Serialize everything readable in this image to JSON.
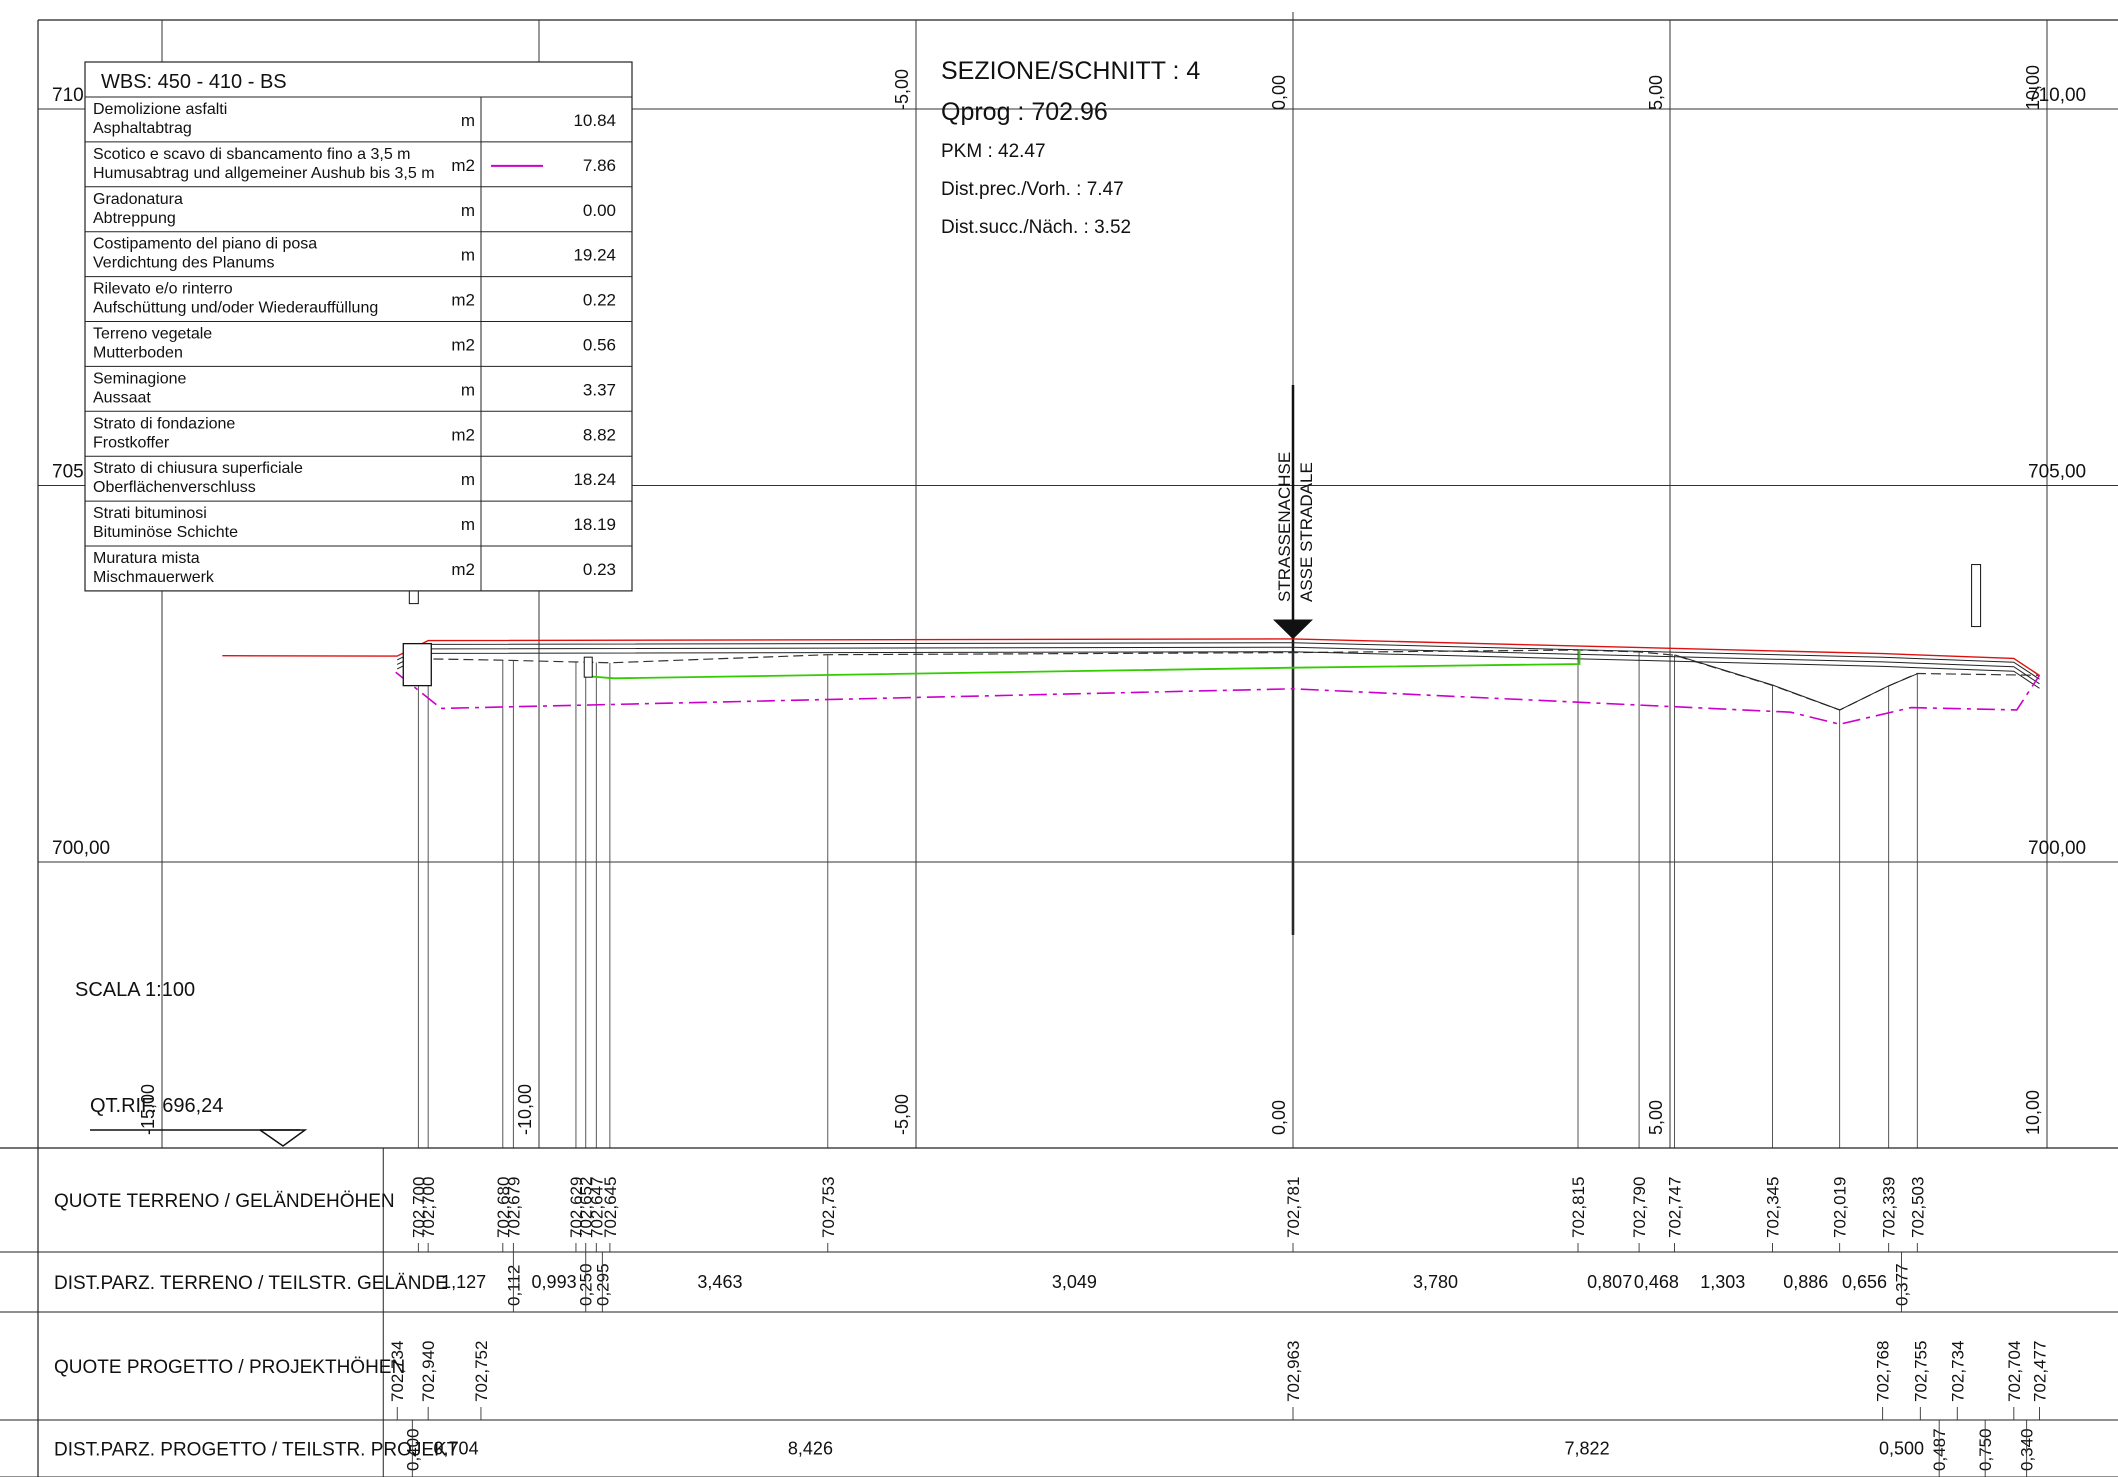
{
  "wbs_table": {
    "header": "WBS: 450 - 410 - BS",
    "rows": [
      {
        "it": "Demolizione asfalti",
        "de": "Asphaltabtrag",
        "unit": "m",
        "value": "10.84",
        "legend": ""
      },
      {
        "it": "Scotico e scavo di sbancamento fino a 3,5 m",
        "de": "Humusabtrag und allgemeiner Aushub bis 3,5 m",
        "unit": "m2",
        "value": "7.86",
        "legend": "#cc00cc"
      },
      {
        "it": "Gradonatura",
        "de": "Abtreppung",
        "unit": "m",
        "value": "0.00",
        "legend": ""
      },
      {
        "it": "Costipamento del piano di posa",
        "de": "Verdichtung des Planums",
        "unit": "m",
        "value": "19.24",
        "legend": ""
      },
      {
        "it": "Rilevato e/o rinterro",
        "de": "Aufschüttung und/oder Wiederauffüllung",
        "unit": "m2",
        "value": "0.22",
        "legend": ""
      },
      {
        "it": "Terreno vegetale",
        "de": "Mutterboden",
        "unit": "m2",
        "value": "0.56",
        "legend": ""
      },
      {
        "it": "Seminagione",
        "de": "Aussaat",
        "unit": "m",
        "value": "3.37",
        "legend": ""
      },
      {
        "it": "Strato di fondazione",
        "de": "Frostkoffer",
        "unit": "m2",
        "value": "8.82",
        "legend": ""
      },
      {
        "it": "Strato di chiusura superficiale",
        "de": "Oberflächenverschluss",
        "unit": "m",
        "value": "18.24",
        "legend": ""
      },
      {
        "it": "Strati bituminosi",
        "de": "Bituminöse Schichte",
        "unit": "m",
        "value": "18.19",
        "legend": ""
      },
      {
        "it": "Muratura mista",
        "de": "Mischmauerwerk",
        "unit": "m2",
        "value": "0.23",
        "legend": ""
      }
    ]
  },
  "section_info": {
    "title": "SEZIONE/SCHNITT : 4",
    "qprog": "Qprog : 702.96",
    "pkm": "PKM : 42.47",
    "dist_prev": "Dist.prec./Vorh. : 7.47",
    "dist_next": "Dist.succ./Näch. : 3.52"
  },
  "axis_labels": {
    "strassenachse": "STRASSENACHSE",
    "asse_stradale": "ASSE STRADALE"
  },
  "elevation_labels": [
    {
      "label": "710,00",
      "elev": 710,
      "side": "left",
      "partial": "710"
    },
    {
      "label": "710,00",
      "elev": 710,
      "side": "right"
    },
    {
      "label": "705,00",
      "elev": 705,
      "side": "left",
      "partial": "705"
    },
    {
      "label": "705,00",
      "elev": 705,
      "side": "right"
    },
    {
      "label": "700,00",
      "elev": 700,
      "side": "left"
    },
    {
      "label": "700,00",
      "elev": 700,
      "side": "right"
    }
  ],
  "offset_labels_top": [
    "-5,00",
    "0,00",
    "5,00",
    "10,00"
  ],
  "offset_labels_bottom": [
    "-10,00",
    "-5,00",
    "0,00",
    "5,00",
    "10,00",
    "-15,00"
  ],
  "scale": "SCALA 1:100",
  "reference": "QT.RIF. 696,24",
  "bands": [
    {
      "label": "QUOTE TERRENO / GELÄNDEHÖHEN",
      "values": [
        {
          "x": -11.6,
          "t": "702,700"
        },
        {
          "x": -11.47,
          "t": "702,700"
        },
        {
          "x": -10.48,
          "t": "702,680"
        },
        {
          "x": -10.34,
          "t": "702,679"
        },
        {
          "x": -9.51,
          "t": "702,629"
        },
        {
          "x": -9.38,
          "t": "702,652"
        },
        {
          "x": -9.24,
          "t": "702,647"
        },
        {
          "x": -9.06,
          "t": "702,645"
        },
        {
          "x": -6.17,
          "t": "702,753"
        },
        {
          "x": 0.0,
          "t": "702,781"
        },
        {
          "x": 3.78,
          "t": "702,815"
        },
        {
          "x": 4.59,
          "t": "702,790"
        },
        {
          "x": 5.06,
          "t": "702,747"
        },
        {
          "x": 6.36,
          "t": "702,345"
        },
        {
          "x": 7.25,
          "t": "702,019"
        },
        {
          "x": 7.9,
          "t": "702,339"
        },
        {
          "x": 8.28,
          "t": "702,503"
        }
      ]
    },
    {
      "label": "DIST.PARZ. TERRENO / TEILSTR. GELÄNDE",
      "values": [
        {
          "x": -11.0,
          "t": "1,127",
          "rot": false
        },
        {
          "x": -10.34,
          "t": "0,112",
          "rot": true
        },
        {
          "x": -9.8,
          "t": "0,993",
          "rot": false
        },
        {
          "x": -9.38,
          "t": "0,250",
          "rot": true
        },
        {
          "x": -9.16,
          "t": "0,295",
          "rot": true
        },
        {
          "x": -7.6,
          "t": "3,463",
          "rot": false
        },
        {
          "x": -2.9,
          "t": "3,049",
          "rot": false
        },
        {
          "x": 1.89,
          "t": "3,780",
          "rot": false
        },
        {
          "x": 4.2,
          "t": "0,807",
          "rot": false
        },
        {
          "x": 4.82,
          "t": "0,468",
          "rot": false
        },
        {
          "x": 5.7,
          "t": "1,303",
          "rot": false
        },
        {
          "x": 6.8,
          "t": "0,886",
          "rot": false
        },
        {
          "x": 7.58,
          "t": "0,656",
          "rot": false
        },
        {
          "x": 8.07,
          "t": "0,377",
          "rot": true
        }
      ]
    },
    {
      "label": "QUOTE PROGETTO / PROJEKTHÖHEN",
      "values": [
        {
          "x": -11.88,
          "t": "702,734"
        },
        {
          "x": -11.47,
          "t": "702,940"
        },
        {
          "x": -10.77,
          "t": "702,752"
        },
        {
          "x": 0.0,
          "t": "702,963"
        },
        {
          "x": 7.82,
          "t": "702,768"
        },
        {
          "x": 8.32,
          "t": "702,755"
        },
        {
          "x": 8.81,
          "t": "702,734"
        },
        {
          "x": 9.56,
          "t": "702,704"
        },
        {
          "x": 9.9,
          "t": "702,477"
        }
      ]
    },
    {
      "label": "DIST.PARZ. PROGETTO / TEILSTR. PROJEKT",
      "values": [
        {
          "x": -11.68,
          "t": "0,400",
          "rot": true
        },
        {
          "x": -11.1,
          "t": "0,704",
          "rot": false
        },
        {
          "x": -6.4,
          "t": "8,426",
          "rot": false
        },
        {
          "x": 3.9,
          "t": "7,822",
          "rot": false
        },
        {
          "x": 8.07,
          "t": "0,500",
          "rot": false
        },
        {
          "x": 8.57,
          "t": "0,487",
          "rot": true
        },
        {
          "x": 9.18,
          "t": "0,750",
          "rot": true
        },
        {
          "x": 9.73,
          "t": "0,340",
          "rot": true
        }
      ]
    }
  ],
  "colors": {
    "project_surface": "#e01010",
    "excavation": "#cc00cc",
    "topsoil": "#33cc00",
    "grid": "#333333"
  },
  "chart_data": {
    "type": "line",
    "xlabel": "",
    "ylabel": "",
    "series": [
      {
        "name": "",
        "kind": "terrain",
        "points": [
          [
            -11.6,
            702.7
          ],
          [
            -10.48,
            702.68
          ],
          [
            -9.06,
            702.645
          ],
          [
            -6.17,
            702.753
          ],
          [
            0.0,
            702.781
          ],
          [
            3.78,
            702.815
          ],
          [
            4.59,
            702.79
          ],
          [
            5.06,
            702.747
          ],
          [
            6.36,
            702.345
          ],
          [
            7.25,
            702.019
          ],
          [
            7.9,
            702.339
          ],
          [
            8.28,
            702.503
          ],
          [
            9.9,
            702.48
          ]
        ]
      },
      {
        "name": "",
        "kind": "project",
        "points": [
          [
            -14.2,
            702.74
          ],
          [
            -11.88,
            702.734
          ],
          [
            -11.47,
            702.94
          ],
          [
            0.0,
            702.963
          ],
          [
            7.82,
            702.768
          ],
          [
            9.56,
            702.704
          ],
          [
            9.9,
            702.477
          ]
        ]
      },
      {
        "name": "",
        "kind": "excavation",
        "points": [
          [
            -11.9,
            702.52
          ],
          [
            -11.3,
            702.04
          ],
          [
            0.0,
            702.3
          ],
          [
            6.6,
            701.99
          ],
          [
            7.25,
            701.83
          ],
          [
            8.2,
            702.05
          ],
          [
            9.6,
            702.02
          ],
          [
            9.9,
            702.48
          ]
        ]
      },
      {
        "name": "",
        "kind": "topsoil",
        "points": [
          [
            -9.4,
            702.47
          ],
          [
            -9.0,
            702.44
          ],
          [
            0.0,
            702.58
          ],
          [
            3.8,
            702.63
          ],
          [
            3.8,
            702.82
          ]
        ]
      }
    ]
  }
}
